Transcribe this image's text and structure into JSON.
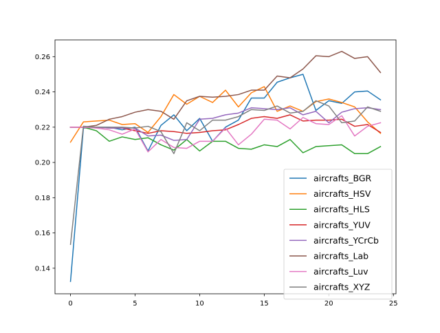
{
  "chart_data": {
    "type": "line",
    "title": "",
    "xlabel": "",
    "ylabel": "",
    "xlim": [
      -1.2,
      25.2
    ],
    "ylim": [
      0.1255,
      0.2695
    ],
    "x_ticks": [
      0,
      5,
      10,
      15,
      20,
      25
    ],
    "y_ticks": [
      0.14,
      0.16,
      0.18,
      0.2,
      0.22,
      0.24,
      0.26
    ],
    "x_tick_labels": [
      "0",
      "5",
      "10",
      "15",
      "20",
      "25"
    ],
    "y_tick_labels": [
      "0.14",
      "0.16",
      "0.18",
      "0.20",
      "0.22",
      "0.24",
      "0.26"
    ],
    "grid": false,
    "legend_position": "lower-right",
    "x": [
      0,
      1,
      2,
      3,
      4,
      5,
      6,
      7,
      8,
      9,
      10,
      11,
      12,
      13,
      14,
      15,
      16,
      17,
      18,
      19,
      20,
      21,
      22,
      23,
      24
    ],
    "series": [
      {
        "name": "aircrafts_BGR",
        "color": "#1f77b4",
        "values": [
          0.1325,
          0.2195,
          0.22,
          0.22,
          0.2185,
          0.22,
          0.2065,
          0.221,
          0.227,
          0.218,
          0.225,
          0.212,
          0.22,
          0.224,
          0.2365,
          0.2365,
          0.2455,
          0.248,
          0.25,
          0.2295,
          0.235,
          0.2335,
          0.24,
          0.2405,
          0.2355
        ]
      },
      {
        "name": "aircrafts_HSV",
        "color": "#ff7f0e",
        "values": [
          0.2115,
          0.223,
          0.2235,
          0.224,
          0.2215,
          0.222,
          0.217,
          0.226,
          0.2385,
          0.233,
          0.2375,
          0.234,
          0.241,
          0.2315,
          0.2395,
          0.243,
          0.229,
          0.232,
          0.229,
          0.2345,
          0.236,
          0.234,
          0.2315,
          0.223,
          0.2165
        ]
      },
      {
        "name": "aircrafts_HLS",
        "color": "#2ca02c",
        "values": [
          0.22,
          0.22,
          0.218,
          0.212,
          0.2145,
          0.213,
          0.214,
          0.21,
          0.207,
          0.213,
          0.2065,
          0.212,
          0.212,
          0.208,
          0.2075,
          0.21,
          0.209,
          0.213,
          0.2055,
          0.209,
          0.2095,
          0.21,
          0.205,
          0.205,
          0.209
        ]
      },
      {
        "name": "aircrafts_YUV",
        "color": "#d62728",
        "values": [
          0.22,
          0.22,
          0.22,
          0.2195,
          0.2195,
          0.218,
          0.2165,
          0.218,
          0.2175,
          0.2165,
          0.217,
          0.218,
          0.2185,
          0.2215,
          0.225,
          0.226,
          0.225,
          0.227,
          0.2235,
          0.224,
          0.224,
          0.2245,
          0.2205,
          0.2215,
          0.217
        ]
      },
      {
        "name": "aircrafts_YCrCb",
        "color": "#9467bd",
        "values": [
          0.22,
          0.22,
          0.22,
          0.2195,
          0.2195,
          0.2195,
          0.215,
          0.2155,
          0.2125,
          0.213,
          0.2245,
          0.225,
          0.227,
          0.228,
          0.231,
          0.2305,
          0.23,
          0.231,
          0.227,
          0.229,
          0.2225,
          0.2285,
          0.2305,
          0.231,
          0.23
        ]
      },
      {
        "name": "aircrafts_Lab",
        "color": "#8c564b",
        "values": [
          0.22,
          0.22,
          0.221,
          0.2245,
          0.226,
          0.2285,
          0.23,
          0.229,
          0.2245,
          0.235,
          0.2375,
          0.237,
          0.2375,
          0.2385,
          0.241,
          0.241,
          0.249,
          0.248,
          0.253,
          0.2605,
          0.26,
          0.263,
          0.259,
          0.26,
          0.251
        ]
      },
      {
        "name": "aircrafts_Luv",
        "color": "#e377c2",
        "values": [
          0.22,
          0.22,
          0.2195,
          0.2185,
          0.216,
          0.219,
          0.206,
          0.213,
          0.2085,
          0.208,
          0.212,
          0.212,
          0.2195,
          0.21,
          0.216,
          0.2245,
          0.224,
          0.219,
          0.2255,
          0.222,
          0.2215,
          0.2265,
          0.215,
          0.2205,
          0.2225
        ]
      },
      {
        "name": "aircrafts_XYZ",
        "color": "#7f7f7f",
        "values": [
          0.1535,
          0.2205,
          0.22,
          0.22,
          0.22,
          0.2195,
          0.2205,
          0.2175,
          0.205,
          0.2225,
          0.218,
          0.224,
          0.224,
          0.226,
          0.23,
          0.2295,
          0.232,
          0.228,
          0.229,
          0.235,
          0.232,
          0.2225,
          0.2235,
          0.2315,
          0.229
        ]
      }
    ]
  }
}
